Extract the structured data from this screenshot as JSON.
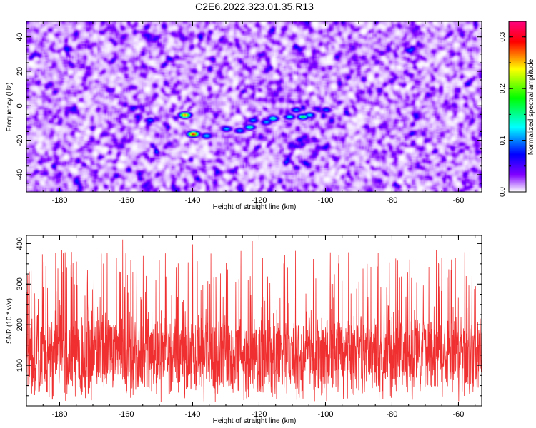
{
  "figure": {
    "title": "C2E6.2022.323.01.35.R13"
  },
  "chart_data": [
    {
      "type": "heatmap",
      "title": "C2E6.2022.323.01.35.R13",
      "xlabel": "Height of straight line (km)",
      "ylabel": "Frequency (Hz)",
      "xlim": [
        -190,
        -53
      ],
      "ylim": [
        -50,
        49
      ],
      "x_ticks": [
        -180,
        -160,
        -140,
        -120,
        -100,
        -80,
        -60
      ],
      "y_ticks": [
        -40,
        -20,
        0,
        20,
        40
      ],
      "colorbar": {
        "label": "Normalized spectral amplitude",
        "range": [
          0.0,
          0.33
        ],
        "ticks": [
          0.0,
          0.1,
          0.2,
          0.3
        ],
        "colors": [
          "#ffffff",
          "#8000ff",
          "#0000ff",
          "#00ffff",
          "#00ff00",
          "#ffff00",
          "#ff0000",
          "#ff0080"
        ]
      },
      "background_level": 0.03,
      "features": [
        {
          "x": -142.5,
          "y": -5,
          "value": 0.28
        },
        {
          "x": -140,
          "y": -16,
          "value": 0.3
        },
        {
          "x": -136,
          "y": -17,
          "value": 0.14
        },
        {
          "x": -130,
          "y": -13,
          "value": 0.13
        },
        {
          "x": -123,
          "y": -12,
          "value": 0.16
        },
        {
          "x": -122,
          "y": -8,
          "value": 0.12
        },
        {
          "x": -118,
          "y": -9,
          "value": 0.13
        },
        {
          "x": -116,
          "y": -7,
          "value": 0.16
        },
        {
          "x": -111,
          "y": -6,
          "value": 0.15
        },
        {
          "x": -107,
          "y": -6,
          "value": 0.18
        },
        {
          "x": -105,
          "y": -5,
          "value": 0.14
        },
        {
          "x": -109,
          "y": -2,
          "value": 0.12
        },
        {
          "x": -100,
          "y": -2,
          "value": 0.11
        },
        {
          "x": -126,
          "y": -14,
          "value": 0.12
        },
        {
          "x": -153,
          "y": -8,
          "value": 0.11
        }
      ],
      "grid": false
    },
    {
      "type": "line",
      "xlabel": "Height of straight line (km)",
      "ylabel": "SNR (10 * v/v)",
      "xlim": [
        -190,
        -53
      ],
      "ylim": [
        0,
        420
      ],
      "x_ticks": [
        -180,
        -160,
        -140,
        -120,
        -100,
        -80,
        -60
      ],
      "y_ticks": [
        100,
        200,
        300,
        400
      ],
      "series": [
        {
          "color": "#f03030",
          "sample_count": 2200,
          "baseline": 125,
          "typical_range": [
            40,
            240
          ],
          "max": 410,
          "peaks": [
            {
              "x": -161,
              "y": 410
            },
            {
              "x": -140,
              "y": 398
            },
            {
              "x": -122,
              "y": 406
            },
            {
              "x": -109,
              "y": 382
            },
            {
              "x": -96,
              "y": 372
            },
            {
              "x": -65,
              "y": 365
            },
            {
              "x": -176,
              "y": 352
            },
            {
              "x": -150,
              "y": 360
            }
          ]
        }
      ],
      "grid": false
    }
  ]
}
